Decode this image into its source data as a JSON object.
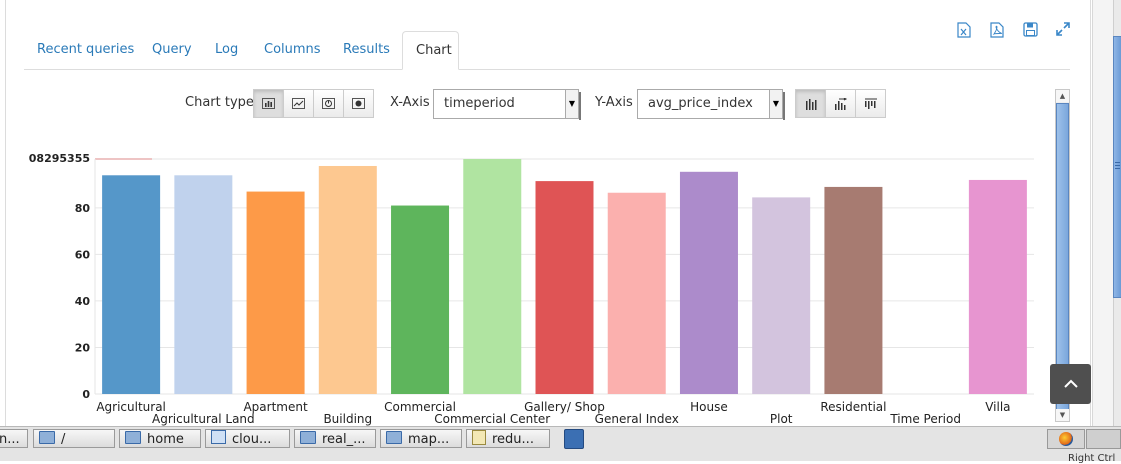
{
  "toolbar_icons": [
    "export-excel-icon",
    "export-pdf-icon",
    "save-icon",
    "fullscreen-icon"
  ],
  "tabs": [
    {
      "label": "Recent queries",
      "active": false
    },
    {
      "label": "Query",
      "active": false
    },
    {
      "label": "Log",
      "active": false
    },
    {
      "label": "Columns",
      "active": false
    },
    {
      "label": "Results",
      "active": false
    },
    {
      "label": "Chart",
      "active": true
    }
  ],
  "controls": {
    "chart_type_label": "Chart type",
    "chart_types": [
      "bar-chart-icon",
      "line-chart-icon",
      "pie-chart-icon",
      "map-chart-icon"
    ],
    "x_axis_label": "X-Axis",
    "x_axis_value": "timeperiod",
    "y_axis_label": "Y-Axis",
    "y_axis_value": "avg_price_index",
    "bar_modes": [
      "grouped-bars-icon",
      "horizontal-bars-icon",
      "stacked-bars-icon"
    ]
  },
  "chart_data": {
    "type": "bar",
    "top_tick_label": "08295355",
    "categories": [
      "Agricultural",
      "Agricultural Land",
      "Apartment",
      "Building",
      "Commercial",
      "Commercial Center",
      "Gallery/ Shop",
      "General Index",
      "House",
      "Plot",
      "Residential",
      "Time Period",
      "Villa"
    ],
    "values": [
      94,
      94,
      87,
      98,
      81,
      101,
      91.5,
      86.5,
      95.5,
      84.5,
      89,
      0,
      92
    ],
    "colors": [
      "#5597c9",
      "#c0d2ed",
      "#fd9a48",
      "#fdc890",
      "#5eb55c",
      "#b0e4a1",
      "#df5455",
      "#fbb0ae",
      "#ac8bcb",
      "#d3c4de",
      "#a77b71",
      "#f0bcd6",
      "#e795d0"
    ],
    "y_ticks": [
      0,
      20,
      40,
      60,
      80
    ],
    "ylim": [
      0,
      101
    ]
  },
  "taskbar": {
    "items": [
      {
        "label": "n...",
        "icon": "folder-icon"
      },
      {
        "label": "/",
        "icon": "folder-icon"
      },
      {
        "label": "home",
        "icon": "folder-icon"
      },
      {
        "label": "clou...",
        "icon": "home-folder-icon"
      },
      {
        "label": "real_...",
        "icon": "folder-icon"
      },
      {
        "label": "map...",
        "icon": "folder-icon"
      },
      {
        "label": "redu...",
        "icon": "text-editor-icon"
      }
    ],
    "tray_text": "Right Ctrl"
  }
}
